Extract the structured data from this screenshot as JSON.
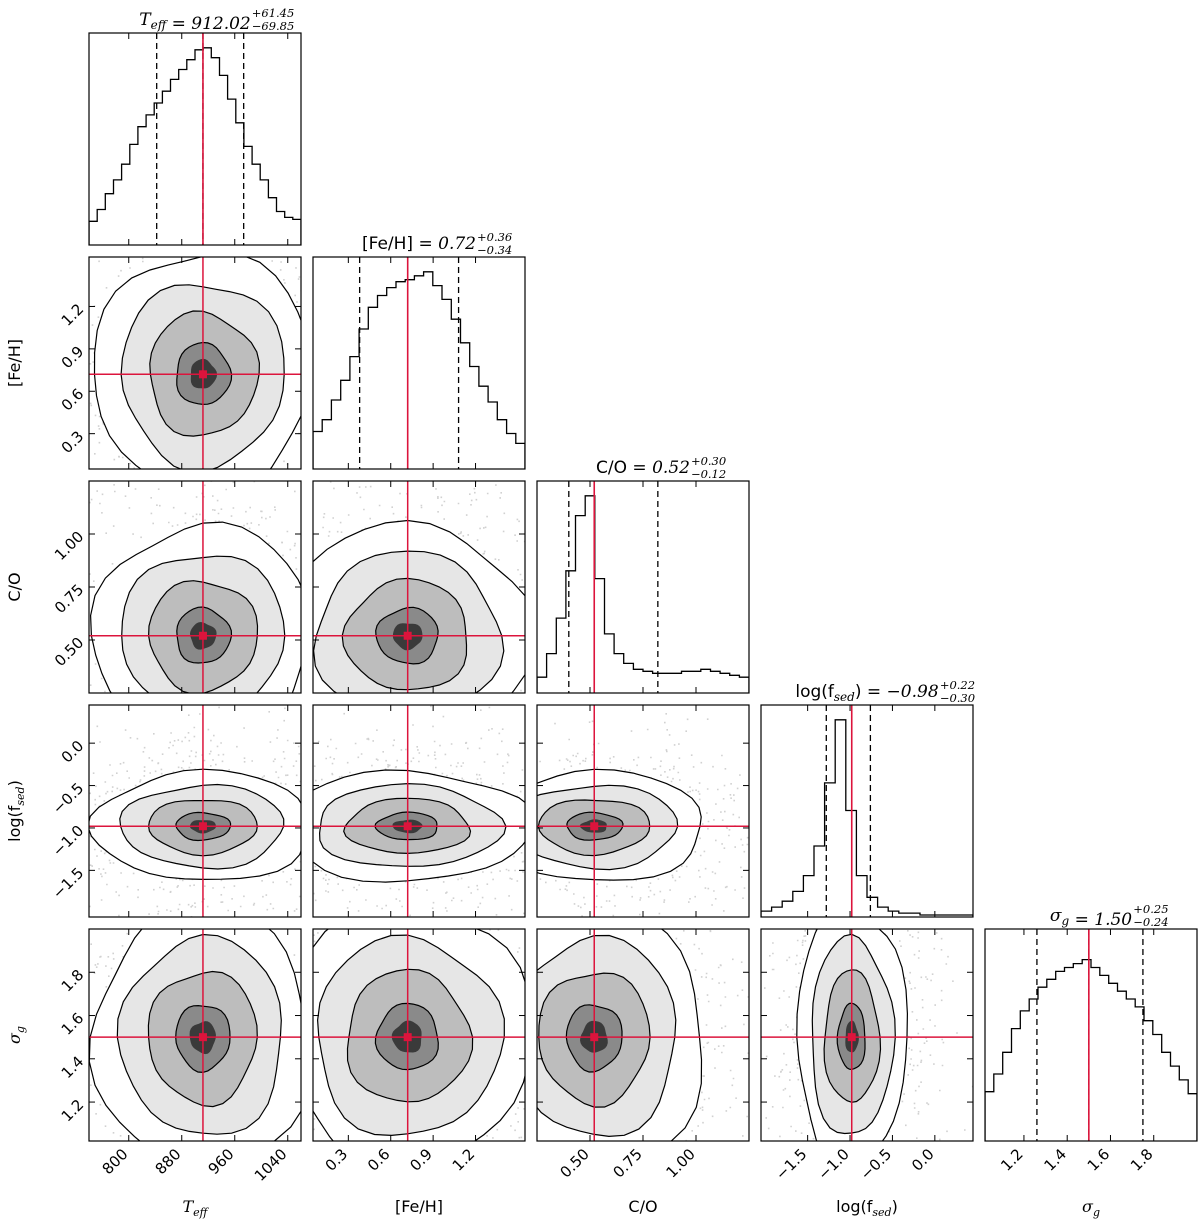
{
  "chart_data": {
    "type": "corner",
    "parameters": [
      {
        "key": "teff",
        "label": "T",
        "label_sub": "eff",
        "italic": true,
        "title_value": "912.02",
        "title_plus": "+61.45",
        "title_minus": "−69.85",
        "range": [
          740,
          1060
        ],
        "ticks": [
          800,
          880,
          960,
          1040
        ],
        "tick_labels": [
          "800",
          "880",
          "960",
          "1040"
        ],
        "truth": 912,
        "quantiles": [
          842.17,
          912.02,
          973.47
        ],
        "hist": [
          0.12,
          0.18,
          0.26,
          0.33,
          0.41,
          0.51,
          0.6,
          0.66,
          0.72,
          0.78,
          0.84,
          0.89,
          0.94,
          0.99,
          1.0,
          0.95,
          0.86,
          0.74,
          0.62,
          0.5,
          0.41,
          0.33,
          0.24,
          0.17,
          0.14,
          0.13
        ]
      },
      {
        "key": "feh",
        "label": "[Fe/H]",
        "label_sub": "",
        "italic": false,
        "title_value": "0.72",
        "title_plus": "+0.36",
        "title_minus": "−0.34",
        "range": [
          0.05,
          1.55
        ],
        "ticks": [
          0.3,
          0.6,
          0.9,
          1.2
        ],
        "tick_labels": [
          "0.3",
          "0.6",
          "0.9",
          "1.2"
        ],
        "truth": 0.72,
        "quantiles": [
          0.38,
          0.72,
          1.08
        ],
        "hist": [
          0.19,
          0.25,
          0.35,
          0.45,
          0.57,
          0.71,
          0.82,
          0.88,
          0.92,
          0.95,
          0.96,
          0.98,
          1.0,
          0.93,
          0.86,
          0.76,
          0.64,
          0.52,
          0.42,
          0.34,
          0.25,
          0.18,
          0.13
        ]
      },
      {
        "key": "co",
        "label": "C/O",
        "label_sub": "",
        "italic": false,
        "title_value": "0.52",
        "title_plus": "+0.30",
        "title_minus": "−0.12",
        "range": [
          0.25,
          1.25
        ],
        "ticks": [
          0.5,
          0.75,
          1.0
        ],
        "tick_labels": [
          "0.50",
          "0.75",
          "1.00"
        ],
        "truth": 0.52,
        "quantiles": [
          0.4,
          0.52,
          0.82
        ],
        "hist": [
          0.08,
          0.2,
          0.38,
          0.62,
          0.9,
          1.0,
          0.58,
          0.3,
          0.2,
          0.15,
          0.12,
          0.11,
          0.1,
          0.1,
          0.1,
          0.11,
          0.11,
          0.12,
          0.11,
          0.1,
          0.09,
          0.08
        ]
      },
      {
        "key": "fsed",
        "label": "log(f",
        "label_sub": "sed",
        "label_tail": ")",
        "italic": false,
        "title_value": "−0.98",
        "title_plus": "+0.22",
        "title_minus": "−0.30",
        "range": [
          -2.05,
          0.45
        ],
        "ticks": [
          -1.5,
          -1.0,
          -0.5,
          0.0
        ],
        "tick_labels": [
          "−1.5",
          "−1.0",
          "−0.5",
          "0.0"
        ],
        "truth": -0.98,
        "quantiles": [
          -1.28,
          -0.98,
          -0.76
        ],
        "hist": [
          0.03,
          0.05,
          0.08,
          0.13,
          0.21,
          0.36,
          0.68,
          1.0,
          0.54,
          0.21,
          0.1,
          0.05,
          0.03,
          0.02,
          0.02,
          0.01,
          0.01,
          0.01,
          0.01,
          0.01
        ]
      },
      {
        "key": "sigma",
        "label": "σ",
        "label_sub": "g",
        "italic": true,
        "title_value": "1.50",
        "title_plus": "+0.25",
        "title_minus": "−0.24",
        "range": [
          1.02,
          2.0
        ],
        "ticks": [
          1.2,
          1.4,
          1.6,
          1.8
        ],
        "tick_labels": [
          "1.2",
          "1.4",
          "1.6",
          "1.8"
        ],
        "truth": 1.5,
        "quantiles": [
          1.26,
          1.5,
          1.75
        ],
        "hist": [
          0.25,
          0.34,
          0.45,
          0.57,
          0.66,
          0.72,
          0.78,
          0.82,
          0.86,
          0.88,
          0.9,
          0.92,
          0.88,
          0.84,
          0.8,
          0.76,
          0.72,
          0.68,
          0.61,
          0.54,
          0.45,
          0.38,
          0.31,
          0.24
        ]
      }
    ],
    "colors": {
      "truth": "#dc143c",
      "contour": "#000000",
      "density": "#404040",
      "frame": "#000000",
      "quantile": "#000000"
    },
    "contour_levels": [
      "0.5 sigma",
      "1 sigma",
      "1.5 sigma",
      "2 sigma"
    ],
    "grid": false,
    "legend": "none"
  }
}
